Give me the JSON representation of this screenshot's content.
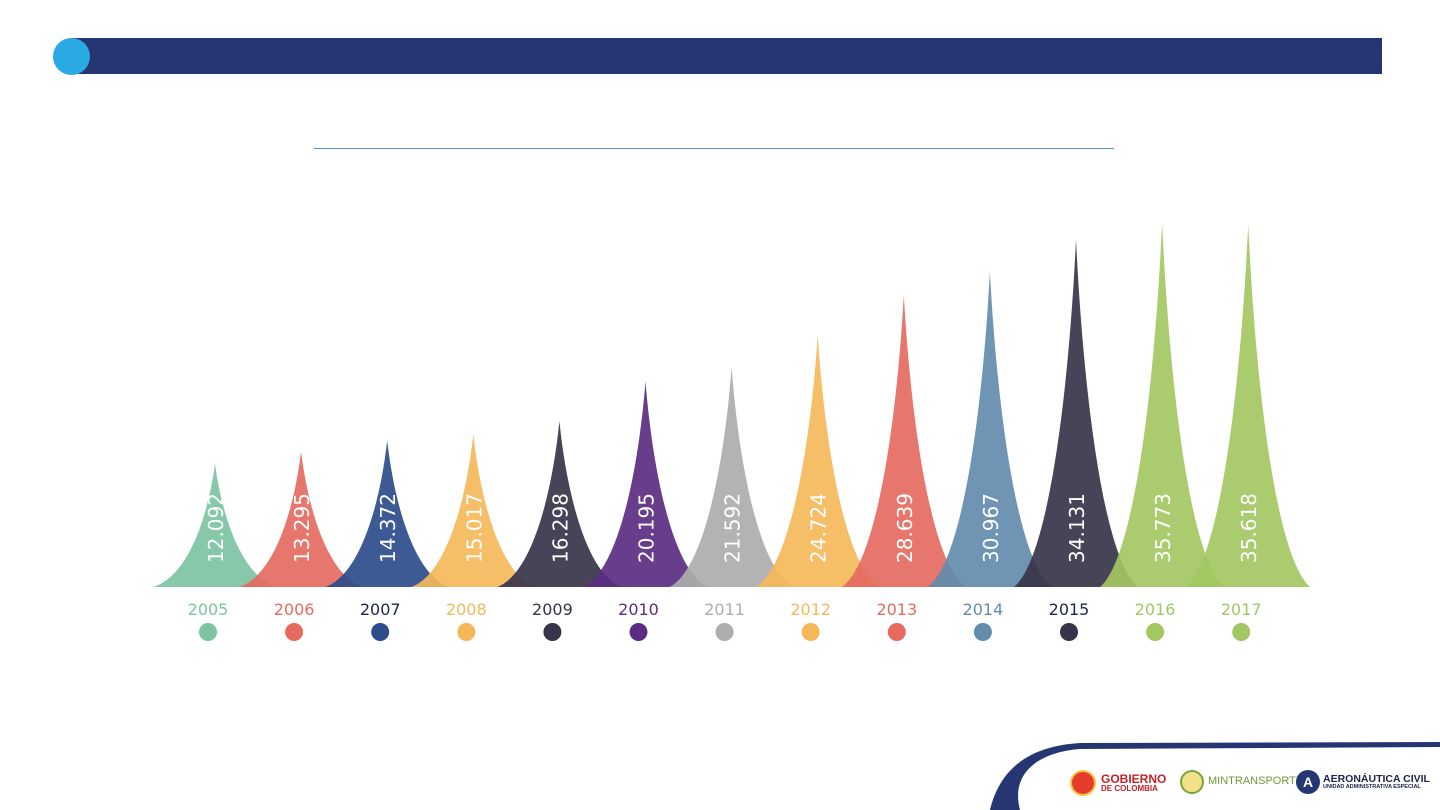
{
  "chart_data": {
    "type": "bar",
    "categories": [
      "2005",
      "2006",
      "2007",
      "2008",
      "2009",
      "2010",
      "2011",
      "2012",
      "2013",
      "2014",
      "2015",
      "2016",
      "2017"
    ],
    "value_labels": [
      "12.092",
      "13.295",
      "14.372",
      "15.017",
      "16.298",
      "20.195",
      "21.592",
      "24.724",
      "28.639",
      "30.967",
      "34.131",
      "35.773",
      "35.618"
    ],
    "values": [
      12092,
      13295,
      14372,
      15017,
      16298,
      20195,
      21592,
      24724,
      28639,
      30967,
      34131,
      35773,
      35618
    ],
    "colors": [
      "#7cc3a2",
      "#e56a5f",
      "#2c4c8c",
      "#f4b85a",
      "#373449",
      "#5b2d82",
      "#adadad",
      "#f4b85a",
      "#e56a5f",
      "#638bae",
      "#373449",
      "#a3c762",
      "#a3c762"
    ],
    "year_label_colors": [
      "#7cc3a2",
      "#e56a5f",
      "#1f2347",
      "#f4b85a",
      "#373449",
      "#5b2d82",
      "#adadad",
      "#f4b85a",
      "#e56a5f",
      "#638bae",
      "#1f2347",
      "#a3c762",
      "#a3c762"
    ],
    "ylim": [
      0,
      38000
    ],
    "title": "",
    "xlabel": "",
    "ylabel": "",
    "grid": false
  },
  "footer": {
    "logo1": {
      "line1": "GOBIERNO",
      "line2": "DE COLOMBIA"
    },
    "logo2": {
      "text": "MINTRANSPORTE"
    },
    "logo3": {
      "line1": "AERONÁUTICA CIVIL",
      "line2": "UNIDAD ADMINISTRATIVA ESPECIAL"
    }
  }
}
